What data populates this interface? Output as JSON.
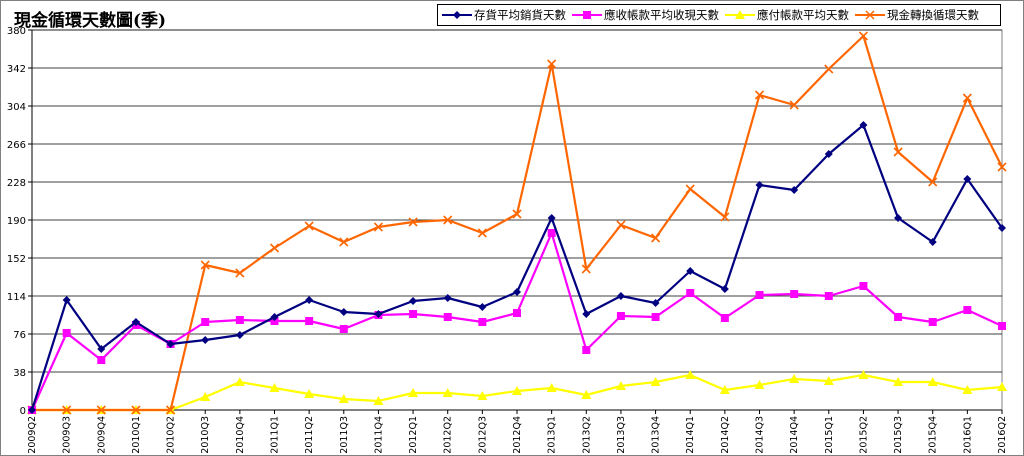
{
  "chart_data": {
    "type": "line",
    "title": "現金循環天數圖(季)",
    "categories": [
      "2009Q2",
      "2009Q3",
      "2009Q4",
      "2010Q1",
      "2010Q2",
      "2010Q3",
      "2010Q4",
      "2011Q1",
      "2011Q2",
      "2011Q3",
      "2011Q4",
      "2012Q1",
      "2012Q2",
      "2012Q3",
      "2012Q4",
      "2013Q1",
      "2013Q2",
      "2013Q3",
      "2013Q4",
      "2014Q1",
      "2014Q2",
      "2014Q3",
      "2014Q4",
      "2015Q1",
      "2015Q2",
      "2015Q3",
      "2015Q4",
      "2016Q1",
      "2016Q2"
    ],
    "ylim": [
      0,
      380
    ],
    "yticks": [
      0,
      38,
      76,
      114,
      152,
      190,
      228,
      266,
      304,
      342,
      380
    ],
    "grid": true,
    "legend_position": "top-right",
    "series": [
      {
        "name": "存貨平均銷貨天數",
        "color": "#000080",
        "marker": "diamond",
        "values": [
          0,
          110,
          61,
          88,
          66,
          70,
          75,
          93,
          110,
          98,
          96,
          109,
          112,
          103,
          118,
          192,
          96,
          114,
          107,
          139,
          121,
          225,
          220,
          256,
          285,
          192,
          168,
          231,
          182
        ]
      },
      {
        "name": "應收帳款平均收現天數",
        "color": "#ff00ff",
        "marker": "square",
        "values": [
          0,
          77,
          50,
          85,
          66,
          88,
          90,
          89,
          89,
          81,
          95,
          96,
          93,
          88,
          97,
          177,
          60,
          94,
          93,
          117,
          92,
          115,
          116,
          114,
          124,
          93,
          88,
          100,
          84
        ]
      },
      {
        "name": "應付帳款平均天數",
        "color": "#ffff00",
        "marker": "triangle",
        "values": [
          0,
          0,
          0,
          0,
          0,
          13,
          28,
          22,
          16,
          11,
          9,
          17,
          17,
          14,
          19,
          22,
          15,
          24,
          28,
          35,
          20,
          25,
          31,
          29,
          35,
          28,
          28,
          20,
          23
        ]
      },
      {
        "name": "現金轉換循環天數",
        "color": "#ff6600",
        "marker": "x",
        "values": [
          0,
          0,
          0,
          0,
          0,
          145,
          137,
          162,
          184,
          168,
          183,
          188,
          190,
          177,
          196,
          346,
          141,
          185,
          172,
          221,
          193,
          315,
          305,
          341,
          374,
          258,
          228,
          312,
          243
        ]
      }
    ]
  }
}
